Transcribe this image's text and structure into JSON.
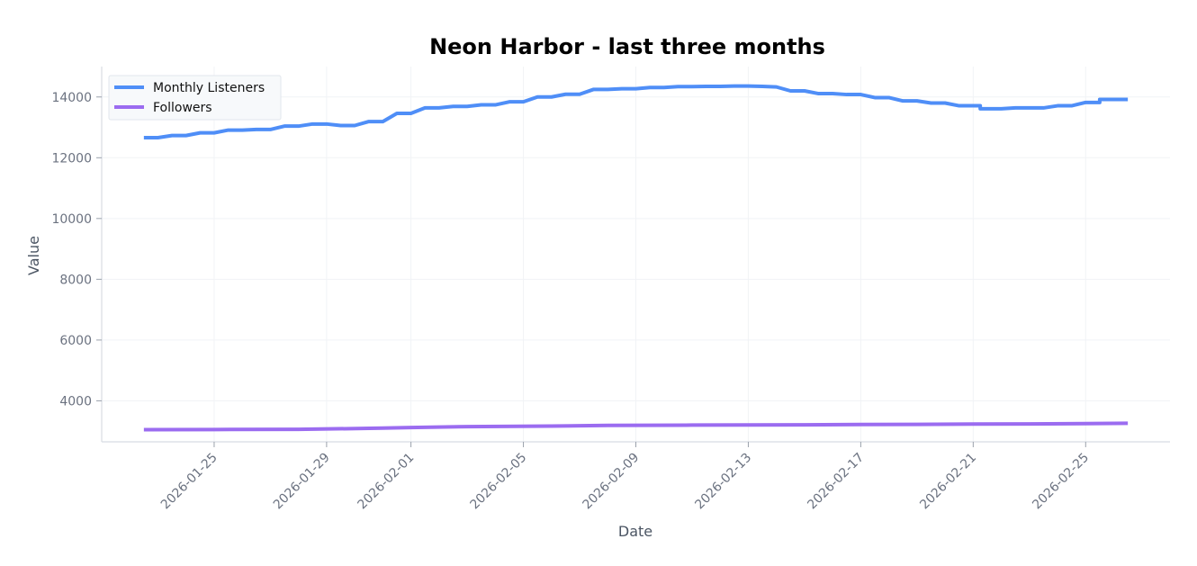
{
  "chart_data": {
    "type": "line",
    "title": "Neon Harbor - last three months",
    "xlabel": "Date",
    "ylabel": "Value",
    "ylim": [
      2650,
      15000
    ],
    "xlim": [
      "2026-01-21",
      "2026-02-28"
    ],
    "yticks": [
      4000,
      6000,
      8000,
      10000,
      12000,
      14000
    ],
    "xticks": [
      "2026-01-25",
      "2026-01-29",
      "2026-02-01",
      "2026-02-05",
      "2026-02-09",
      "2026-02-13",
      "2026-02-17",
      "2026-02-21",
      "2026-02-25"
    ],
    "grid": true,
    "legend_position": "top-left",
    "series": [
      {
        "name": "Monthly Listeners",
        "color": "#4f8ef7",
        "points": [
          [
            "2026-01-22T12:00",
            12660
          ],
          [
            "2026-01-23T00:00",
            12660
          ],
          [
            "2026-01-23T12:00",
            12730
          ],
          [
            "2026-01-24T00:00",
            12730
          ],
          [
            "2026-01-24T12:00",
            12820
          ],
          [
            "2026-01-25T00:00",
            12820
          ],
          [
            "2026-01-25T12:00",
            12910
          ],
          [
            "2026-01-26T00:00",
            12910
          ],
          [
            "2026-01-26T12:00",
            12930
          ],
          [
            "2026-01-27T00:00",
            12930
          ],
          [
            "2026-01-27T12:00",
            13040
          ],
          [
            "2026-01-28T00:00",
            13040
          ],
          [
            "2026-01-28T12:00",
            13110
          ],
          [
            "2026-01-29T00:00",
            13110
          ],
          [
            "2026-01-29T12:00",
            13060
          ],
          [
            "2026-01-30T00:00",
            13060
          ],
          [
            "2026-01-30T12:00",
            13190
          ],
          [
            "2026-01-31T00:00",
            13190
          ],
          [
            "2026-01-31T12:00",
            13460
          ],
          [
            "2026-02-01T00:00",
            13460
          ],
          [
            "2026-02-01T12:00",
            13640
          ],
          [
            "2026-02-02T00:00",
            13640
          ],
          [
            "2026-02-02T12:00",
            13690
          ],
          [
            "2026-02-03T00:00",
            13690
          ],
          [
            "2026-02-03T12:00",
            13740
          ],
          [
            "2026-02-04T00:00",
            13740
          ],
          [
            "2026-02-04T12:00",
            13840
          ],
          [
            "2026-02-05T00:00",
            13840
          ],
          [
            "2026-02-05T12:00",
            14000
          ],
          [
            "2026-02-06T00:00",
            14000
          ],
          [
            "2026-02-06T12:00",
            14090
          ],
          [
            "2026-02-07T00:00",
            14090
          ],
          [
            "2026-02-07T12:00",
            14250
          ],
          [
            "2026-02-08T00:00",
            14250
          ],
          [
            "2026-02-08T12:00",
            14270
          ],
          [
            "2026-02-09T00:00",
            14270
          ],
          [
            "2026-02-09T12:00",
            14310
          ],
          [
            "2026-02-10T00:00",
            14310
          ],
          [
            "2026-02-10T12:00",
            14340
          ],
          [
            "2026-02-11T00:00",
            14340
          ],
          [
            "2026-02-11T12:00",
            14350
          ],
          [
            "2026-02-12T00:00",
            14350
          ],
          [
            "2026-02-12T12:00",
            14360
          ],
          [
            "2026-02-13T00:00",
            14360
          ],
          [
            "2026-02-13T12:00",
            14350
          ],
          [
            "2026-02-14T00:00",
            14330
          ],
          [
            "2026-02-14T12:00",
            14200
          ],
          [
            "2026-02-15T00:00",
            14200
          ],
          [
            "2026-02-15T12:00",
            14110
          ],
          [
            "2026-02-16T00:00",
            14110
          ],
          [
            "2026-02-16T12:00",
            14080
          ],
          [
            "2026-02-17T00:00",
            14080
          ],
          [
            "2026-02-17T12:00",
            13980
          ],
          [
            "2026-02-18T00:00",
            13980
          ],
          [
            "2026-02-18T12:00",
            13870
          ],
          [
            "2026-02-19T00:00",
            13870
          ],
          [
            "2026-02-19T12:00",
            13800
          ],
          [
            "2026-02-20T00:00",
            13800
          ],
          [
            "2026-02-20T12:00",
            13710
          ],
          [
            "2026-02-21T06:00",
            13710
          ],
          [
            "2026-02-21T06:00",
            13610
          ],
          [
            "2026-02-22T00:00",
            13610
          ],
          [
            "2026-02-22T12:00",
            13640
          ],
          [
            "2026-02-23T00:00",
            13640
          ],
          [
            "2026-02-23T12:00",
            13640
          ],
          [
            "2026-02-24T00:00",
            13710
          ],
          [
            "2026-02-24T12:00",
            13710
          ],
          [
            "2026-02-25T00:00",
            13820
          ],
          [
            "2026-02-25T12:00",
            13820
          ],
          [
            "2026-02-25T12:00",
            13920
          ],
          [
            "2026-02-26T12:00",
            13920
          ]
        ]
      },
      {
        "name": "Followers",
        "color": "#9b6cf0",
        "points": [
          [
            "2026-01-22T12:00",
            3050
          ],
          [
            "2026-01-25T00:00",
            3055
          ],
          [
            "2026-01-28T00:00",
            3060
          ],
          [
            "2026-01-31T00:00",
            3100
          ],
          [
            "2026-02-01T00:00",
            3120
          ],
          [
            "2026-02-03T00:00",
            3150
          ],
          [
            "2026-02-06T00:00",
            3170
          ],
          [
            "2026-02-08T00:00",
            3190
          ],
          [
            "2026-02-11T00:00",
            3200
          ],
          [
            "2026-02-13T00:00",
            3205
          ],
          [
            "2026-02-15T00:00",
            3210
          ],
          [
            "2026-02-17T00:00",
            3220
          ],
          [
            "2026-02-19T00:00",
            3225
          ],
          [
            "2026-02-21T00:00",
            3235
          ],
          [
            "2026-02-23T00:00",
            3240
          ],
          [
            "2026-02-25T00:00",
            3250
          ],
          [
            "2026-02-26T12:00",
            3260
          ]
        ]
      }
    ]
  }
}
